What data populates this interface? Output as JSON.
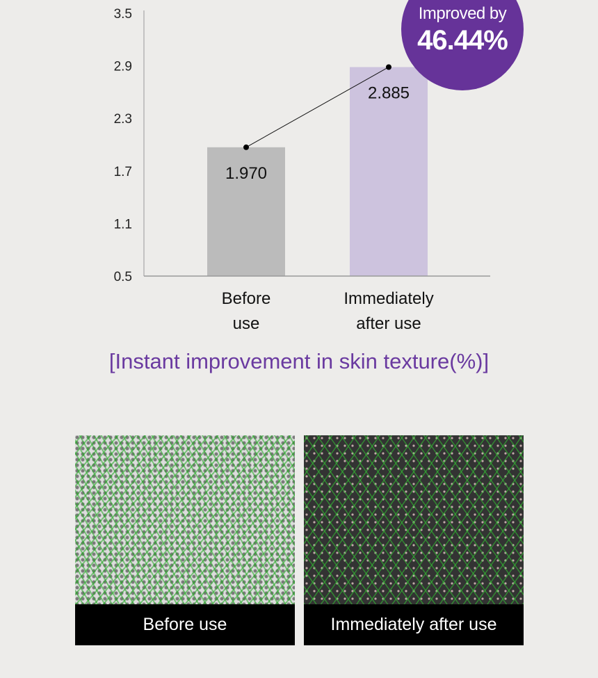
{
  "chart_data": {
    "type": "bar",
    "title": "[Instant improvement in skin texture(%)]",
    "categories": [
      "Before\nuse",
      "Immediately\nafter use"
    ],
    "category_lines": [
      [
        "Before",
        "use"
      ],
      [
        "Immediately",
        "after use"
      ]
    ],
    "values": [
      1.97,
      2.885
    ],
    "value_labels": [
      "1.970",
      "2.885"
    ],
    "yticks": [
      "0.5",
      "1.1",
      "1.7",
      "2.3",
      "2.9",
      "3.5"
    ],
    "ylim": [
      0.5,
      3.5
    ],
    "grid": false,
    "bar_colors": [
      "#bbbbbb",
      "#cdc3de"
    ],
    "connector_line": true,
    "annotation": {
      "line1": "Improved by",
      "line2": "46.44%",
      "color": "#663399"
    }
  },
  "images": [
    {
      "label": "Before use"
    },
    {
      "label": "Immediately after use"
    }
  ]
}
